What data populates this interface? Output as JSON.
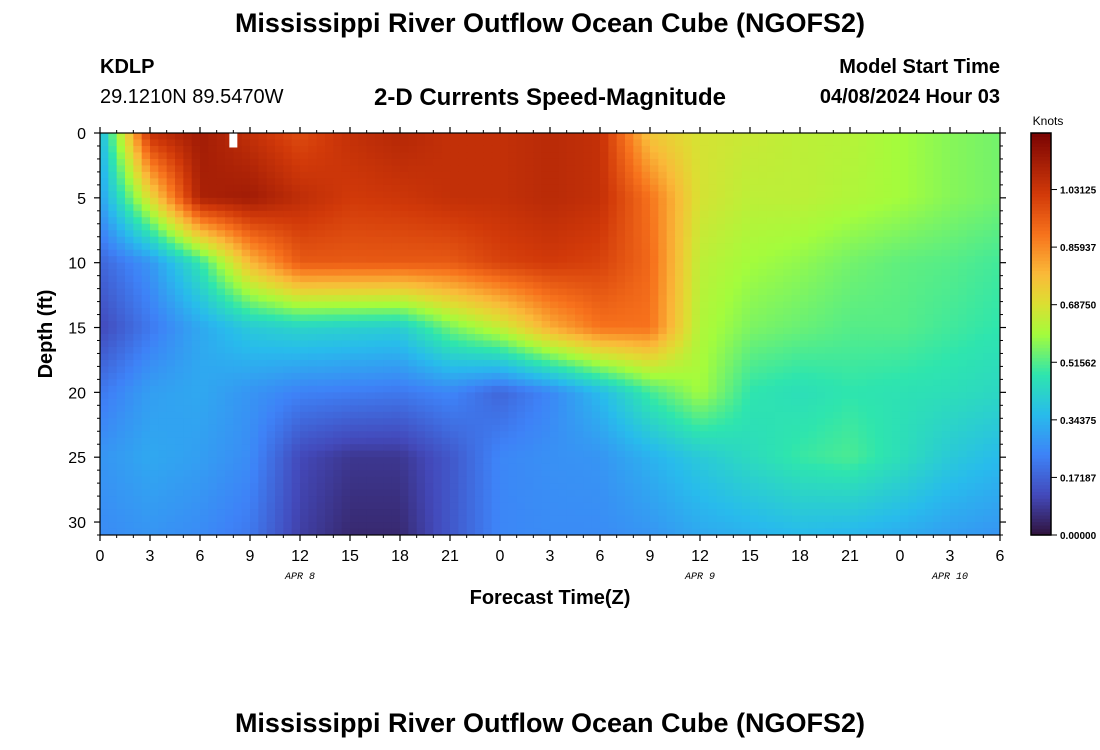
{
  "header": {
    "title": "Mississippi River Outflow Ocean Cube (NGOFS2)",
    "station_id": "KDLP",
    "station_coords": "29.1210N  89.5470W",
    "plot_title": "2-D Currents Speed-Magnitude",
    "model_start_label": "Model Start Time",
    "model_start_value": "04/08/2024 Hour 03"
  },
  "footer": {
    "title": "Mississippi River Outflow Ocean Cube (NGOFS2)"
  },
  "chart_data": {
    "type": "heatmap",
    "xlabel": "Forecast Time(Z)",
    "ylabel": "Depth (ft)",
    "xlim": [
      0,
      54
    ],
    "ylim": [
      31,
      0
    ],
    "x_ticks": [
      0,
      3,
      6,
      9,
      12,
      15,
      18,
      21,
      24,
      27,
      30,
      33,
      36,
      39,
      42,
      45,
      48,
      51,
      54
    ],
    "x_tick_labels": [
      "0",
      "3",
      "6",
      "9",
      "12",
      "15",
      "18",
      "21",
      "0",
      "3",
      "6",
      "9",
      "12",
      "15",
      "18",
      "21",
      "0",
      "3",
      "6"
    ],
    "y_ticks": [
      0,
      5,
      10,
      15,
      20,
      25,
      30
    ],
    "y_tick_labels": [
      "0",
      "5",
      "10",
      "15",
      "20",
      "25",
      "30"
    ],
    "date_labels": [
      {
        "x": 12,
        "label": "APR 8"
      },
      {
        "x": 36,
        "label": "APR 9"
      },
      {
        "x": 51,
        "label": "APR 10"
      }
    ],
    "colorbar": {
      "label": "Knots",
      "min": 0.0,
      "max": 1.2,
      "ticks": [
        0.0,
        0.171875,
        0.34375,
        0.515625,
        0.6875,
        0.859375,
        1.03125
      ],
      "tick_labels": [
        "0.00000",
        "0.17187",
        "0.34375",
        "0.51562",
        "0.68750",
        "0.85937",
        "1.03125"
      ]
    },
    "grid": false,
    "x": [
      0,
      3,
      6,
      9,
      12,
      15,
      18,
      21,
      24,
      27,
      30,
      33,
      36,
      39,
      42,
      45,
      48,
      51,
      54
    ],
    "y": [
      0,
      5,
      10,
      15,
      20,
      25,
      31
    ],
    "values": [
      [
        0.35,
        1.05,
        1.12,
        1.05,
        0.98,
        1.05,
        1.08,
        1.05,
        1.05,
        1.07,
        1.05,
        0.75,
        0.68,
        0.66,
        0.64,
        0.63,
        0.6,
        0.57,
        0.55
      ],
      [
        0.3,
        0.7,
        1.1,
        1.12,
        1.06,
        1.02,
        1.03,
        1.05,
        1.05,
        1.07,
        1.05,
        0.9,
        0.68,
        0.64,
        0.64,
        0.62,
        0.6,
        0.57,
        0.55
      ],
      [
        0.18,
        0.28,
        0.48,
        0.78,
        0.95,
        0.95,
        0.95,
        0.95,
        1.0,
        1.02,
        1.0,
        0.92,
        0.64,
        0.6,
        0.58,
        0.55,
        0.53,
        0.52,
        0.5
      ],
      [
        0.12,
        0.22,
        0.32,
        0.4,
        0.43,
        0.42,
        0.41,
        0.55,
        0.65,
        0.8,
        0.9,
        0.9,
        0.62,
        0.56,
        0.54,
        0.52,
        0.52,
        0.5,
        0.48
      ],
      [
        0.22,
        0.3,
        0.32,
        0.28,
        0.24,
        0.23,
        0.22,
        0.25,
        0.18,
        0.25,
        0.36,
        0.5,
        0.6,
        0.48,
        0.46,
        0.48,
        0.47,
        0.46,
        0.44
      ],
      [
        0.28,
        0.32,
        0.3,
        0.26,
        0.12,
        0.08,
        0.08,
        0.15,
        0.25,
        0.27,
        0.28,
        0.34,
        0.4,
        0.45,
        0.49,
        0.51,
        0.46,
        0.4,
        0.36
      ],
      [
        0.26,
        0.28,
        0.26,
        0.22,
        0.1,
        0.05,
        0.05,
        0.15,
        0.25,
        0.26,
        0.26,
        0.28,
        0.32,
        0.34,
        0.36,
        0.35,
        0.33,
        0.3,
        0.28
      ]
    ],
    "annotations": [
      {
        "x": 8,
        "y": 0.5,
        "shape": "white-marker"
      }
    ]
  }
}
